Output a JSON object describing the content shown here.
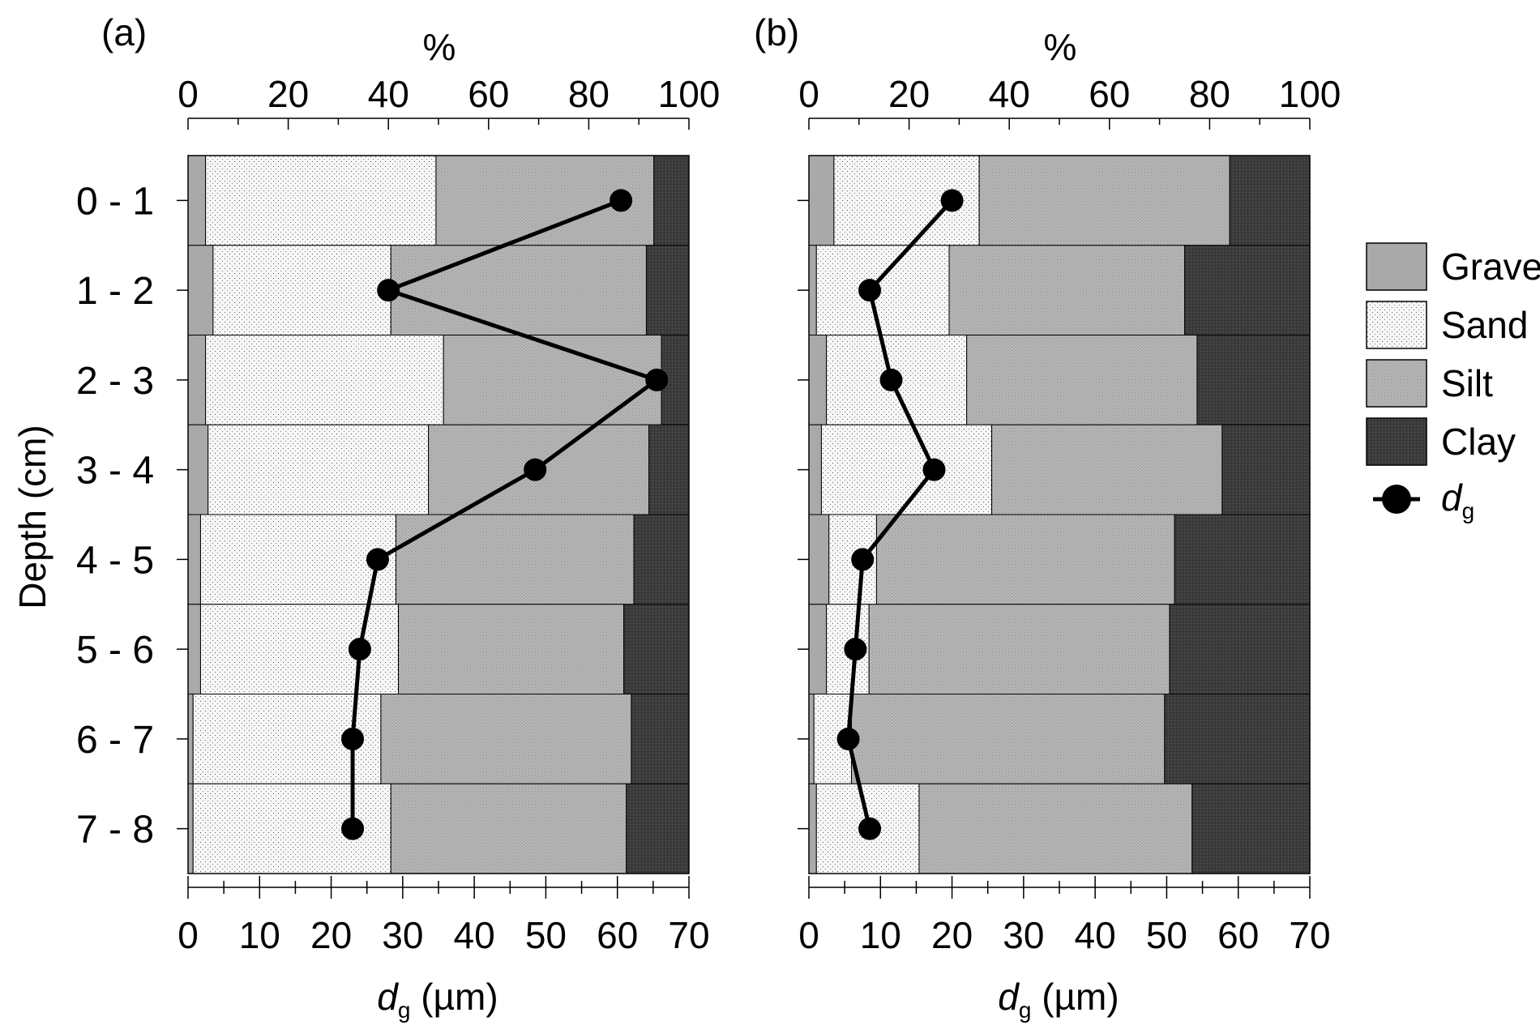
{
  "chart_data": [
    {
      "panel_label": "(a)",
      "type": "bar",
      "orientation": "horizontal",
      "stacked": true,
      "top_axis": {
        "label": "%",
        "range": [
          0,
          100
        ],
        "ticks": [
          "0",
          "20",
          "40",
          "60",
          "80",
          "100"
        ]
      },
      "bottom_axis": {
        "label_main": "d",
        "label_sub": "g",
        "label_unit": " (µm)",
        "range": [
          0,
          70
        ],
        "ticks": [
          "0",
          "10",
          "20",
          "30",
          "40",
          "50",
          "60",
          "70"
        ]
      },
      "ylabel": "Depth (cm)",
      "categories": [
        "0 - 1",
        "1 - 2",
        "2 - 3",
        "3 - 4",
        "4 - 5",
        "5 - 6",
        "6 - 7",
        "7 - 8"
      ],
      "series": [
        {
          "name": "Gravel",
          "values": [
            3.5,
            5.0,
            3.5,
            4.0,
            2.5,
            2.5,
            1.0,
            1.0
          ]
        },
        {
          "name": "Sand",
          "values": [
            46.0,
            35.5,
            47.5,
            44.0,
            39.0,
            39.5,
            37.5,
            39.5
          ]
        },
        {
          "name": "Silt",
          "values": [
            43.5,
            51.0,
            43.5,
            44.0,
            47.5,
            45.0,
            50.0,
            47.0
          ]
        },
        {
          "name": "Clay",
          "values": [
            7.0,
            8.5,
            5.5,
            8.0,
            11.0,
            13.0,
            11.5,
            12.5
          ]
        }
      ],
      "line_series": {
        "name": "d_g",
        "values": [
          60.5,
          28.0,
          65.5,
          48.5,
          26.5,
          24.0,
          23.0,
          23.0
        ]
      }
    },
    {
      "panel_label": "(b)",
      "type": "bar",
      "orientation": "horizontal",
      "stacked": true,
      "top_axis": {
        "label": "%",
        "range": [
          0,
          100
        ],
        "ticks": [
          "0",
          "20",
          "40",
          "60",
          "80",
          "100"
        ]
      },
      "bottom_axis": {
        "label_main": "d",
        "label_sub": "g",
        "label_unit": " (µm)",
        "range": [
          0,
          70
        ],
        "ticks": [
          "0",
          "10",
          "20",
          "30",
          "40",
          "50",
          "60",
          "70"
        ]
      },
      "categories": [
        "0 - 1",
        "1 - 2",
        "2 - 3",
        "3 - 4",
        "4 - 5",
        "5 - 6",
        "6 - 7",
        "7 - 8"
      ],
      "series": [
        {
          "name": "Gravel",
          "values": [
            5.0,
            1.5,
            3.5,
            2.5,
            4.0,
            3.5,
            1.0,
            1.5
          ]
        },
        {
          "name": "Sand",
          "values": [
            29.0,
            26.5,
            28.0,
            34.0,
            9.5,
            8.5,
            7.5,
            20.5
          ]
        },
        {
          "name": "Silt",
          "values": [
            50.0,
            47.0,
            46.0,
            46.0,
            59.5,
            60.0,
            62.5,
            54.5
          ]
        },
        {
          "name": "Clay",
          "values": [
            16.0,
            25.0,
            22.5,
            17.5,
            27.0,
            28.0,
            29.0,
            23.5
          ]
        }
      ],
      "line_series": {
        "name": "d_g",
        "values": [
          20.0,
          8.5,
          11.5,
          17.5,
          7.5,
          6.5,
          5.5,
          8.5
        ]
      }
    }
  ],
  "legend": {
    "items": [
      {
        "label": "Gravel",
        "kind": "gravel"
      },
      {
        "label": "Sand",
        "kind": "sand"
      },
      {
        "label": "Silt",
        "kind": "silt"
      },
      {
        "label": "Clay",
        "kind": "clay"
      }
    ],
    "marker_main": "d",
    "marker_sub": "g"
  },
  "colors": {
    "gravel": "#a9a9a9",
    "sand": "#f6f6f6",
    "silt": "#b4b4b4",
    "clay": "#3c3c3c",
    "line": "#000000"
  }
}
